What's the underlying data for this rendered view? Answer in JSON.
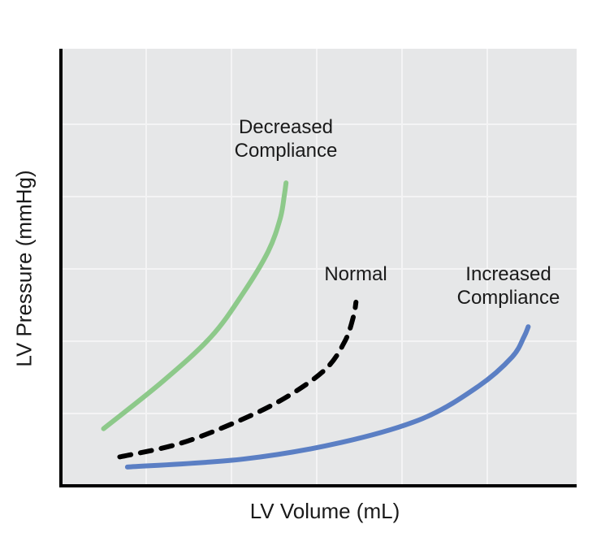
{
  "chart_data": {
    "type": "line",
    "title": "",
    "xlabel": "LV Volume (mL)",
    "ylabel": "LV Pressure (mmHg)",
    "xlim": [
      0,
      6
    ],
    "ylim": [
      0,
      6
    ],
    "grid": true,
    "tick_labels": false,
    "background": "#e6e7e8",
    "series": [
      {
        "name": "Decreased Compliance",
        "color": "#8dc98a",
        "dashed": false,
        "points": [
          [
            0.5,
            0.79
          ],
          [
            1.19,
            1.44
          ],
          [
            1.76,
            2.06
          ],
          [
            2.14,
            2.67
          ],
          [
            2.43,
            3.24
          ],
          [
            2.57,
            3.69
          ],
          [
            2.62,
            4.02
          ],
          [
            2.64,
            4.19
          ]
        ]
      },
      {
        "name": "Normal",
        "color": "#000000",
        "dashed": true,
        "points": [
          [
            0.69,
            0.4
          ],
          [
            1.38,
            0.58
          ],
          [
            2.05,
            0.88
          ],
          [
            2.62,
            1.21
          ],
          [
            3.1,
            1.61
          ],
          [
            3.33,
            2.0
          ],
          [
            3.43,
            2.34
          ],
          [
            3.46,
            2.54
          ]
        ]
      },
      {
        "name": "Increased Compliance",
        "color": "#5b7fc4",
        "dashed": false,
        "points": [
          [
            0.78,
            0.26
          ],
          [
            2.14,
            0.37
          ],
          [
            3.29,
            0.6
          ],
          [
            4.24,
            0.93
          ],
          [
            4.9,
            1.38
          ],
          [
            5.29,
            1.78
          ],
          [
            5.43,
            2.06
          ],
          [
            5.48,
            2.2
          ]
        ]
      }
    ],
    "annotations": {
      "decreased": [
        "Decreased",
        "Compliance"
      ],
      "normal": "Normal",
      "increased": [
        "Increased",
        "Compliance"
      ]
    }
  }
}
